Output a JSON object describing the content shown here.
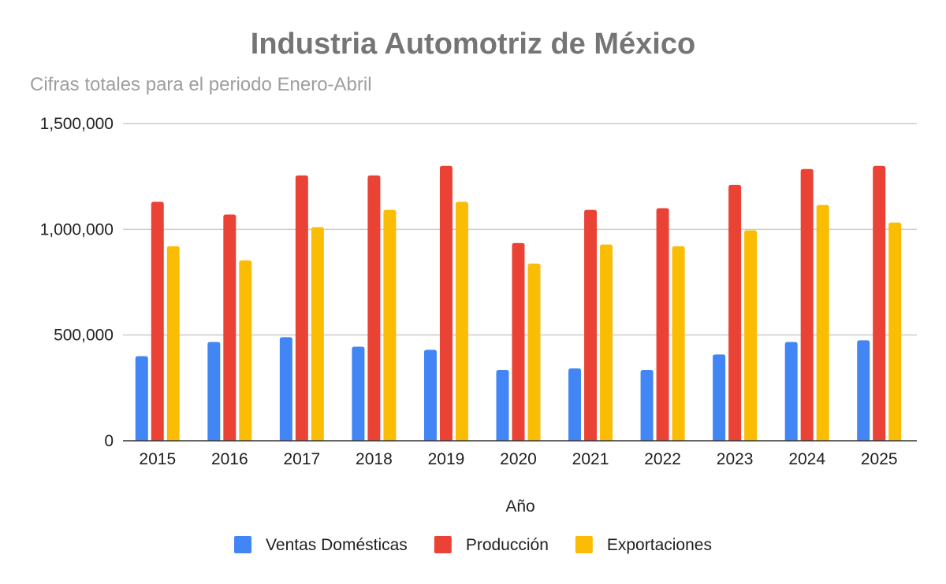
{
  "chart_data": {
    "type": "bar",
    "title": "Industria Automotriz de México",
    "subtitle": "Cifras totales para el periodo Enero-Abril",
    "xlabel": "Año",
    "ylabel": "",
    "ylim": [
      0,
      1500000
    ],
    "yticks": [
      0,
      500000,
      1000000,
      1500000
    ],
    "ytick_labels": [
      "0",
      "500,000",
      "1,000,000",
      "1,500,000"
    ],
    "grid": true,
    "legend_position": "bottom",
    "categories": [
      "2015",
      "2016",
      "2017",
      "2018",
      "2019",
      "2020",
      "2021",
      "2022",
      "2023",
      "2024",
      "2025"
    ],
    "series": [
      {
        "name": "Ventas Domésticas",
        "color": "#4285f4",
        "values": [
          400000,
          467000,
          490000,
          445000,
          430000,
          335000,
          342000,
          335000,
          408000,
          467000,
          475000
        ]
      },
      {
        "name": "Producción",
        "color": "#ea4335",
        "values": [
          1130000,
          1070000,
          1255000,
          1255000,
          1300000,
          935000,
          1092000,
          1100000,
          1210000,
          1285000,
          1300000
        ]
      },
      {
        "name": "Exportaciones",
        "color": "#fbbc04",
        "values": [
          920000,
          853000,
          1010000,
          1092000,
          1130000,
          838000,
          928000,
          920000,
          995000,
          1115000,
          1032000
        ]
      }
    ]
  }
}
